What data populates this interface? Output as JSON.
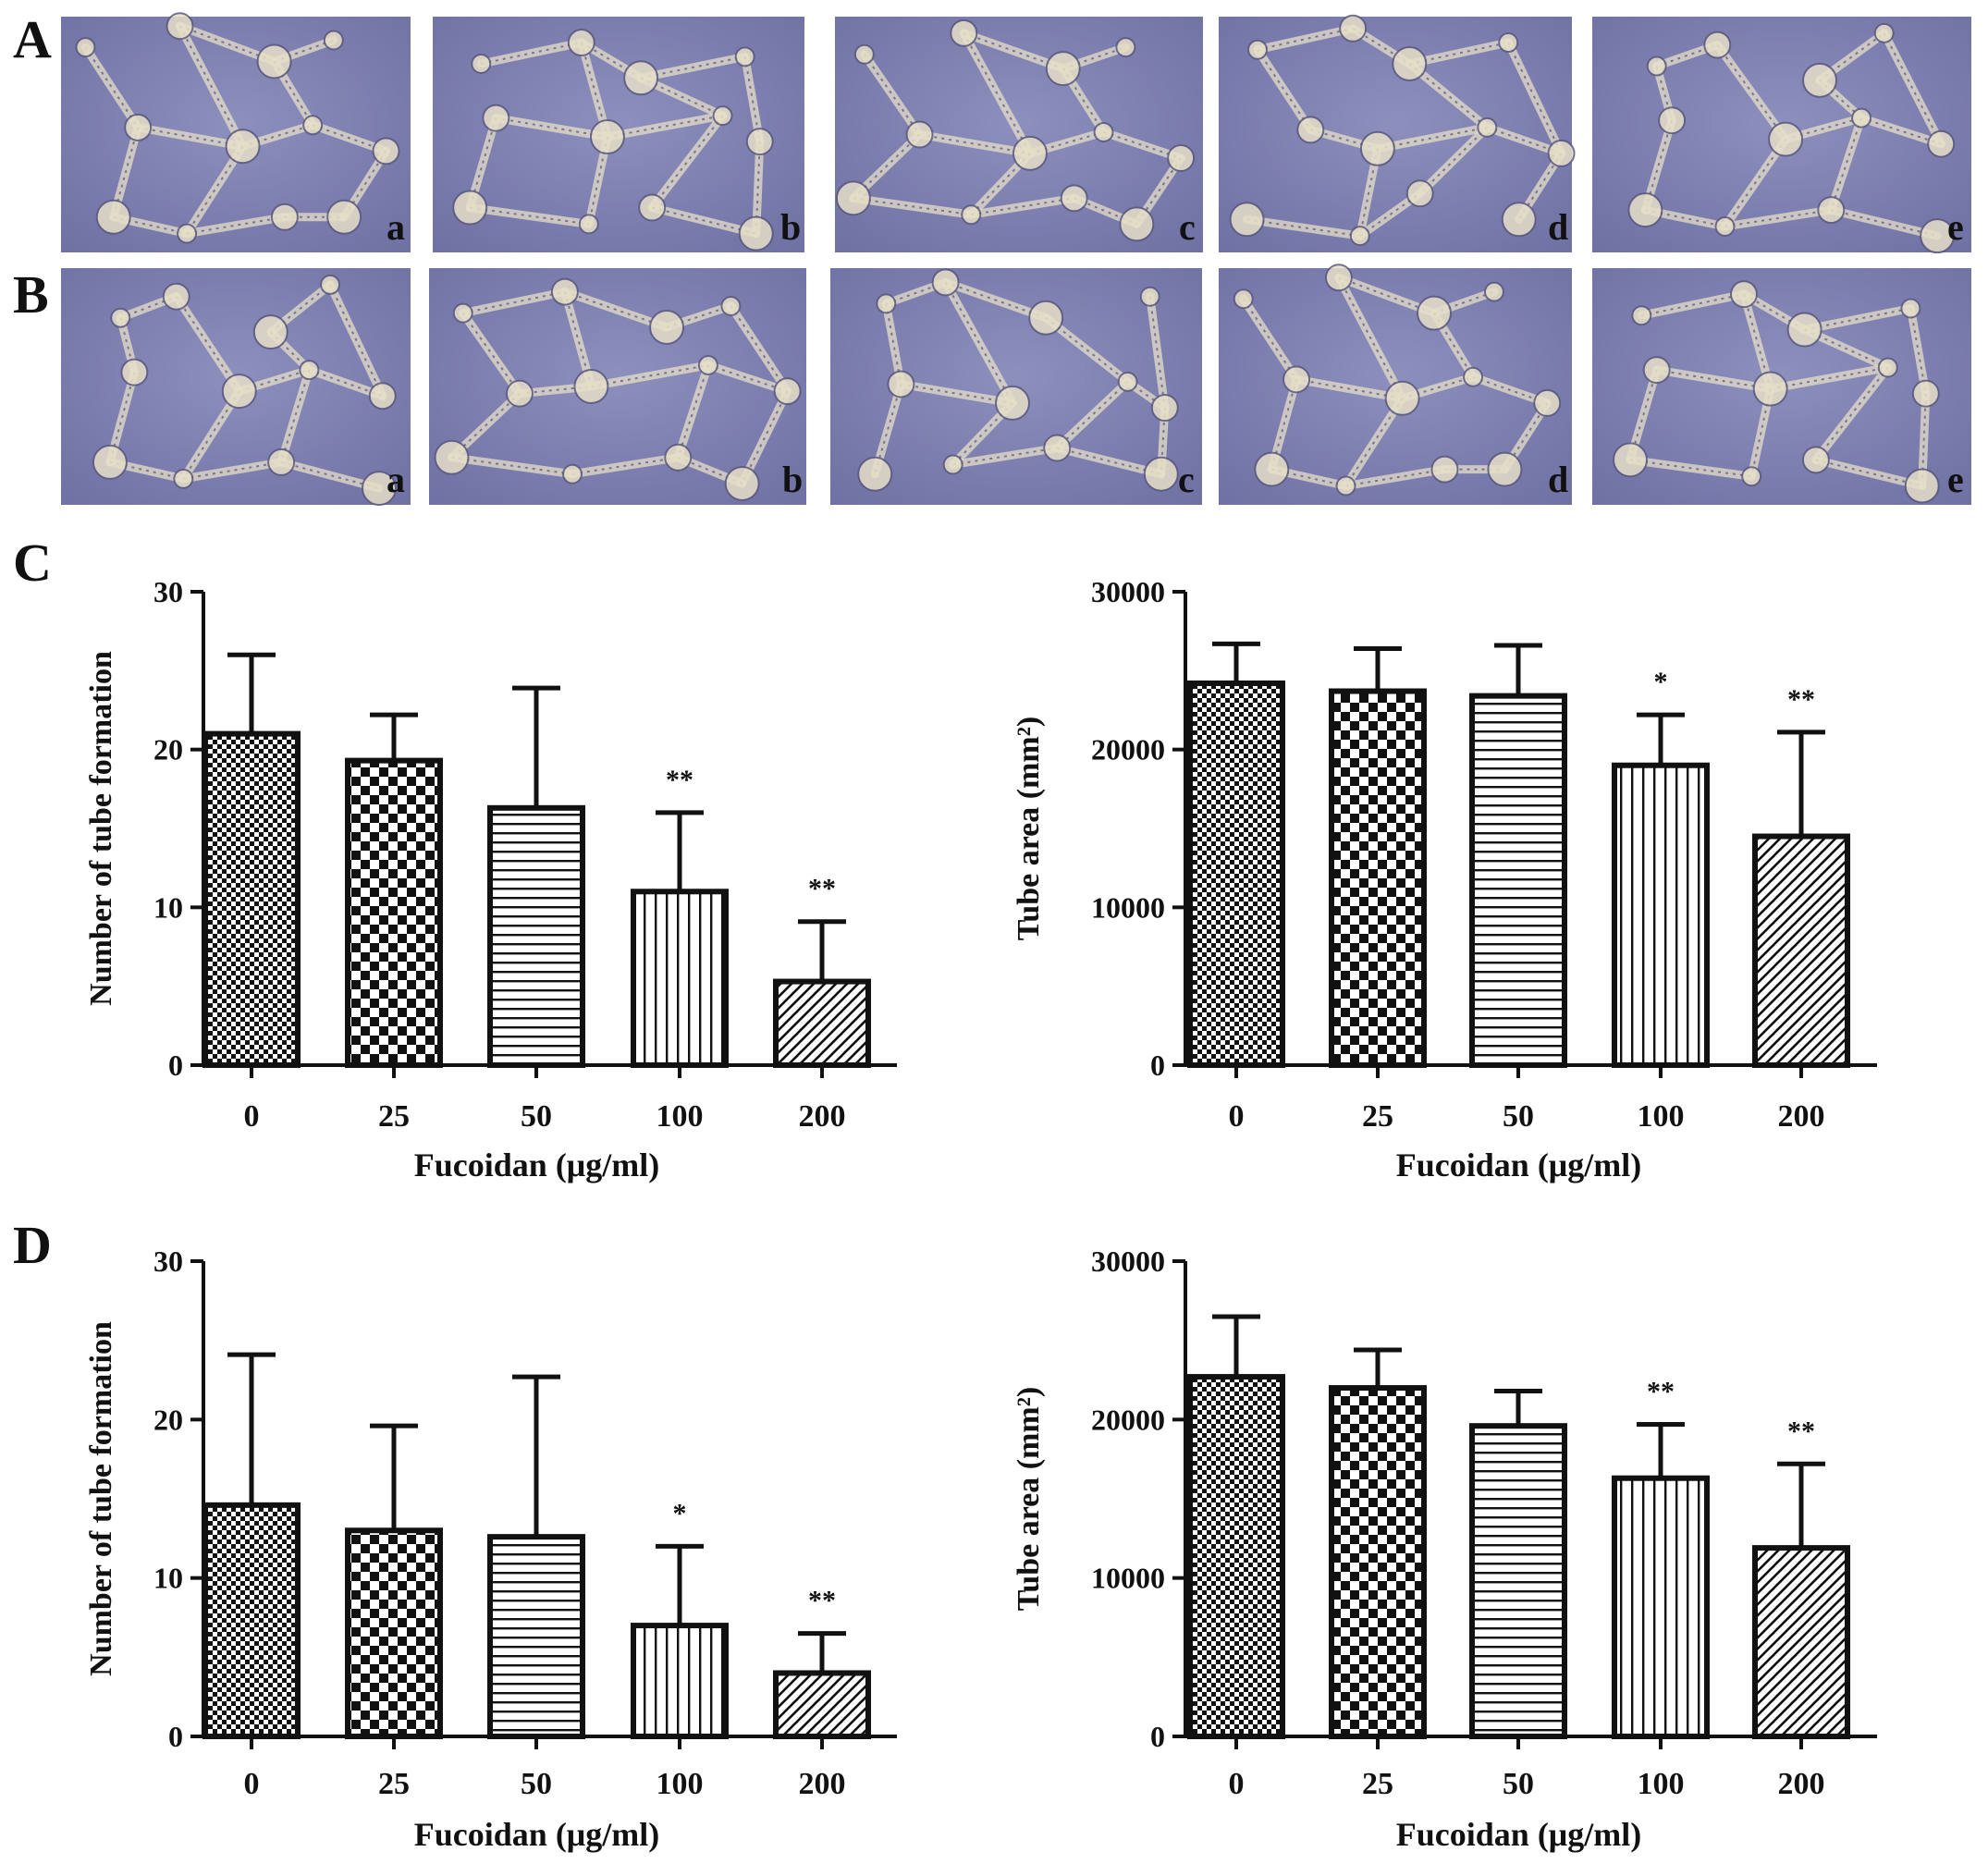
{
  "panel_letters": [
    "A",
    "B",
    "C",
    "D"
  ],
  "micrograph_rows": [
    {
      "panel": "A",
      "labels": [
        "a",
        "b",
        "c",
        "d",
        "e"
      ]
    },
    {
      "panel": "B",
      "labels": [
        "a",
        "b",
        "c",
        "d",
        "e"
      ]
    }
  ],
  "colors": {
    "micrograph_bg": "#7f80b0",
    "tube_network": "#e6dfc8",
    "axis": "#111111",
    "bar_fill": "#ffffff"
  },
  "chart_data": [
    {
      "panel": "C",
      "type": "bar",
      "categories": [
        "0",
        "25",
        "50",
        "100",
        "200"
      ],
      "values": [
        21,
        19.3,
        16.3,
        11,
        5.3
      ],
      "errors": [
        5,
        2.9,
        7.6,
        5,
        3.8
      ],
      "significance": [
        "",
        "",
        "",
        "**",
        "**"
      ],
      "patterns": [
        "checker-fine",
        "checker-coarse",
        "horizontal-lines",
        "vertical-lines",
        "diagonal-lines"
      ],
      "ylabel": "Number of tube formation",
      "xlabel": "Fucoidan (μg/ml)",
      "ylim": [
        0,
        30
      ],
      "yticks": [
        0,
        10,
        20,
        30
      ],
      "ytick_labels": [
        "0",
        "10",
        "20",
        "30"
      ]
    },
    {
      "panel": "C",
      "type": "bar",
      "categories": [
        "0",
        "25",
        "50",
        "100",
        "200"
      ],
      "values": [
        24200,
        23700,
        23400,
        19000,
        14500
      ],
      "errors": [
        2500,
        2700,
        3200,
        3200,
        6600
      ],
      "significance": [
        "",
        "",
        "",
        "*",
        "**"
      ],
      "patterns": [
        "checker-fine",
        "checker-coarse",
        "horizontal-lines",
        "vertical-lines",
        "diagonal-lines"
      ],
      "ylabel": "Tube area (mm²)",
      "xlabel": "Fucoidan (μg/ml)",
      "ylim": [
        0,
        30000
      ],
      "yticks": [
        0,
        10000,
        20000,
        30000
      ],
      "ytick_labels": [
        "0",
        "10000",
        "20000",
        "30000"
      ]
    },
    {
      "panel": "D",
      "type": "bar",
      "categories": [
        "0",
        "25",
        "50",
        "100",
        "200"
      ],
      "values": [
        14.6,
        13,
        12.6,
        7,
        4
      ],
      "errors": [
        9.5,
        6.6,
        10.1,
        5,
        2.5
      ],
      "significance": [
        "",
        "",
        "",
        "*",
        "**"
      ],
      "patterns": [
        "checker-fine",
        "checker-coarse",
        "horizontal-lines",
        "vertical-lines",
        "diagonal-lines"
      ],
      "ylabel": "Number of tube formation",
      "xlabel": "Fucoidan (μg/ml)",
      "ylim": [
        0,
        30
      ],
      "yticks": [
        0,
        10,
        20,
        30
      ],
      "ytick_labels": [
        "0",
        "10",
        "20",
        "30"
      ]
    },
    {
      "panel": "D",
      "type": "bar",
      "categories": [
        "0",
        "25",
        "50",
        "100",
        "200"
      ],
      "values": [
        22700,
        22000,
        19600,
        16300,
        11900
      ],
      "errors": [
        3800,
        2400,
        2200,
        3400,
        5300
      ],
      "significance": [
        "",
        "",
        "",
        "**",
        "**"
      ],
      "patterns": [
        "checker-fine",
        "checker-coarse",
        "horizontal-lines",
        "vertical-lines",
        "diagonal-lines"
      ],
      "ylabel": "Tube area (mm²)",
      "xlabel": "Fucoidan (μg/ml)",
      "ylim": [
        0,
        30000
      ],
      "yticks": [
        0,
        10000,
        20000,
        30000
      ],
      "ytick_labels": [
        "0",
        "10000",
        "20000",
        "30000"
      ]
    }
  ]
}
